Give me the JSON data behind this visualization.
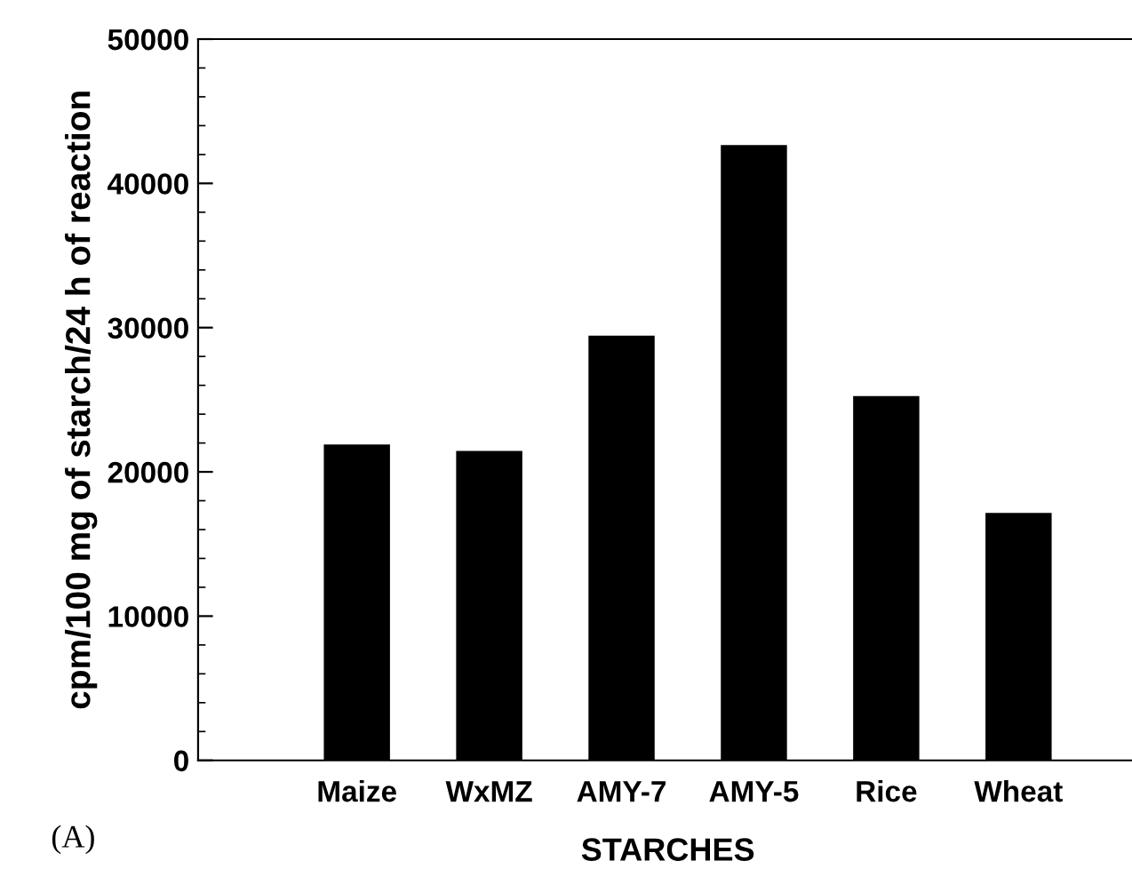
{
  "chart_data": {
    "type": "bar",
    "categories": [
      "Maize",
      "WxMZ",
      "AMY-7",
      "AMY-5",
      "Rice",
      "Wheat"
    ],
    "values": [
      21900,
      21450,
      29450,
      42650,
      25250,
      17150
    ],
    "color": "#000000",
    "xlabel": "STARCHES",
    "ylabel": "cpm/100 mg of starch/24 h of reaction",
    "ylim": [
      0,
      50000
    ],
    "yticks": [
      0,
      10000,
      20000,
      30000,
      40000,
      50000
    ],
    "grid": false,
    "annotations": [
      "(A)"
    ]
  }
}
